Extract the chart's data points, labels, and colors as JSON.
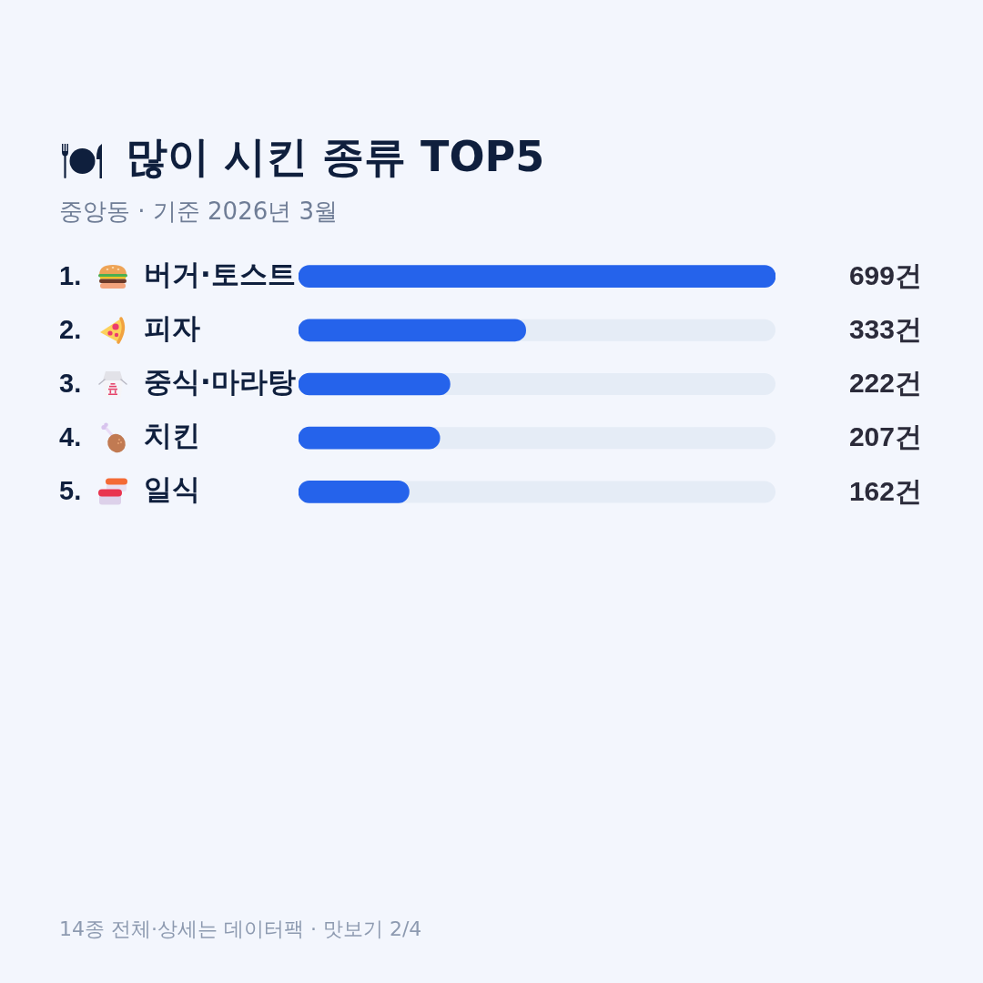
{
  "chart_data": {
    "type": "bar",
    "orientation": "horizontal",
    "title": "많이 시킨 종류 TOP5",
    "subtitle": "중앙동 · 기준 2026년 3월",
    "categories": [
      "1. 버거·토스트",
      "2. 피자",
      "3. 중식·마라탕",
      "4. 치킨",
      "5. 일식"
    ],
    "values": [
      699,
      333,
      222,
      207,
      162
    ],
    "value_labels": [
      "699건",
      "333건",
      "222건",
      "207건",
      "162건"
    ],
    "color": "#2563eb",
    "xlim": [
      0,
      699
    ],
    "tick_labels": "y",
    "annotations": [
      "14종 전체·상세는 데이터팩 · 맛보기 2/4"
    ]
  }
}
